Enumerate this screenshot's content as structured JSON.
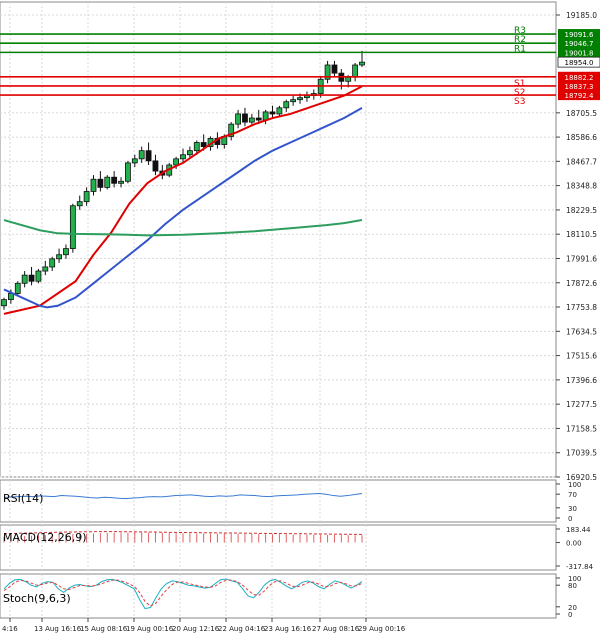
{
  "chart_data": [
    {
      "type": "candlestick",
      "x_tick_labels": [
        "4:16",
        "13 Aug 16:16",
        "15 Aug 08:16",
        "19 Aug 00:16",
        "20 Aug 12:16",
        "22 Aug 04:16",
        "23 Aug 16:16",
        "27 Aug 08:16",
        "29 Aug 00:16"
      ],
      "y_tick_labels": [
        "19185.0",
        "18705.5",
        "18586.6",
        "18467.7",
        "18348.8",
        "18229.5",
        "18110.5",
        "17991.6",
        "17872.6",
        "17753.8",
        "17634.5",
        "17515.6",
        "17396.6",
        "17277.5",
        "17158.5",
        "17039.5",
        "16920.5"
      ],
      "ylim": [
        16920.5,
        19185.0
      ],
      "levels": [
        {
          "name": "R3",
          "value": 19091.6,
          "color": "#008000"
        },
        {
          "name": "R2",
          "value": 19046.7,
          "color": "#008000"
        },
        {
          "name": "R1",
          "value": 19001.8,
          "color": "#008000"
        },
        {
          "name": "S1",
          "value": 18882.2,
          "color": "#e00000"
        },
        {
          "name": "S2",
          "value": 18837.3,
          "color": "#e00000"
        },
        {
          "name": "S3",
          "value": 18792.4,
          "color": "#e00000"
        }
      ],
      "current_price": "18954.0",
      "candles": [
        {
          "o": 17760,
          "h": 17800,
          "c": 17790,
          "l": 17740
        },
        {
          "o": 17790,
          "h": 17840,
          "c": 17820,
          "l": 17770
        },
        {
          "o": 17820,
          "h": 17880,
          "c": 17870,
          "l": 17810
        },
        {
          "o": 17870,
          "h": 17930,
          "c": 17910,
          "l": 17850
        },
        {
          "o": 17910,
          "h": 17950,
          "c": 17880,
          "l": 17860
        },
        {
          "o": 17880,
          "h": 17940,
          "c": 17930,
          "l": 17870
        },
        {
          "o": 17930,
          "h": 17980,
          "c": 17950,
          "l": 17910
        },
        {
          "o": 17950,
          "h": 18000,
          "c": 17990,
          "l": 17930
        },
        {
          "o": 17990,
          "h": 18040,
          "c": 18010,
          "l": 17970
        },
        {
          "o": 18010,
          "h": 18060,
          "c": 18040,
          "l": 17990
        },
        {
          "o": 18040,
          "h": 18260,
          "c": 18250,
          "l": 18020
        },
        {
          "o": 18250,
          "h": 18300,
          "c": 18270,
          "l": 18230
        },
        {
          "o": 18270,
          "h": 18340,
          "c": 18320,
          "l": 18250
        },
        {
          "o": 18320,
          "h": 18400,
          "c": 18380,
          "l": 18300
        },
        {
          "o": 18380,
          "h": 18420,
          "c": 18340,
          "l": 18320
        },
        {
          "o": 18340,
          "h": 18400,
          "c": 18390,
          "l": 18330
        },
        {
          "o": 18390,
          "h": 18420,
          "c": 18360,
          "l": 18340
        },
        {
          "o": 18360,
          "h": 18390,
          "c": 18370,
          "l": 18340
        },
        {
          "o": 18370,
          "h": 18470,
          "c": 18460,
          "l": 18360
        },
        {
          "o": 18460,
          "h": 18500,
          "c": 18480,
          "l": 18440
        },
        {
          "o": 18480,
          "h": 18540,
          "c": 18520,
          "l": 18460
        },
        {
          "o": 18520,
          "h": 18560,
          "c": 18470,
          "l": 18450
        },
        {
          "o": 18470,
          "h": 18500,
          "c": 18420,
          "l": 18400
        },
        {
          "o": 18420,
          "h": 18450,
          "c": 18400,
          "l": 18380
        },
        {
          "o": 18400,
          "h": 18460,
          "c": 18450,
          "l": 18390
        },
        {
          "o": 18450,
          "h": 18490,
          "c": 18480,
          "l": 18430
        },
        {
          "o": 18480,
          "h": 18530,
          "c": 18500,
          "l": 18460
        },
        {
          "o": 18500,
          "h": 18540,
          "c": 18520,
          "l": 18480
        },
        {
          "o": 18520,
          "h": 18570,
          "c": 18560,
          "l": 18500
        },
        {
          "o": 18560,
          "h": 18600,
          "c": 18540,
          "l": 18520
        },
        {
          "o": 18540,
          "h": 18590,
          "c": 18580,
          "l": 18520
        },
        {
          "o": 18580,
          "h": 18610,
          "c": 18550,
          "l": 18530
        },
        {
          "o": 18550,
          "h": 18600,
          "c": 18590,
          "l": 18530
        },
        {
          "o": 18590,
          "h": 18660,
          "c": 18650,
          "l": 18570
        },
        {
          "o": 18650,
          "h": 18720,
          "c": 18700,
          "l": 18630
        },
        {
          "o": 18700,
          "h": 18730,
          "c": 18660,
          "l": 18640
        },
        {
          "o": 18660,
          "h": 18700,
          "c": 18680,
          "l": 18640
        },
        {
          "o": 18680,
          "h": 18720,
          "c": 18670,
          "l": 18650
        },
        {
          "o": 18670,
          "h": 18720,
          "c": 18710,
          "l": 18650
        },
        {
          "o": 18710,
          "h": 18740,
          "c": 18700,
          "l": 18680
        },
        {
          "o": 18700,
          "h": 18740,
          "c": 18730,
          "l": 18690
        },
        {
          "o": 18730,
          "h": 18770,
          "c": 18760,
          "l": 18710
        },
        {
          "o": 18760,
          "h": 18790,
          "c": 18770,
          "l": 18740
        },
        {
          "o": 18770,
          "h": 18800,
          "c": 18780,
          "l": 18750
        },
        {
          "o": 18780,
          "h": 18810,
          "c": 18790,
          "l": 18760
        },
        {
          "o": 18790,
          "h": 18820,
          "c": 18800,
          "l": 18770
        },
        {
          "o": 18800,
          "h": 18880,
          "c": 18870,
          "l": 18780
        },
        {
          "o": 18870,
          "h": 18960,
          "c": 18940,
          "l": 18850
        },
        {
          "o": 18940,
          "h": 18960,
          "c": 18900,
          "l": 18880
        },
        {
          "o": 18900,
          "h": 18920,
          "c": 18860,
          "l": 18820
        },
        {
          "o": 18860,
          "h": 18890,
          "c": 18880,
          "l": 18830
        },
        {
          "o": 18880,
          "h": 18950,
          "c": 18940,
          "l": 18860
        },
        {
          "o": 18940,
          "h": 19010,
          "c": 18954,
          "l": 18930
        }
      ],
      "moving_averages": [
        {
          "color": "#e00000",
          "points": [
            [
              0,
              17720
            ],
            [
              10,
              17760
            ],
            [
              20,
              17880
            ],
            [
              25,
              18010
            ],
            [
              30,
              18120
            ],
            [
              35,
              18260
            ],
            [
              40,
              18360
            ],
            [
              45,
              18420
            ],
            [
              50,
              18460
            ],
            [
              55,
              18520
            ],
            [
              60,
              18580
            ],
            [
              65,
              18610
            ],
            [
              70,
              18650
            ],
            [
              75,
              18680
            ],
            [
              80,
              18700
            ],
            [
              85,
              18730
            ],
            [
              90,
              18760
            ],
            [
              95,
              18790
            ],
            [
              100,
              18835
            ]
          ]
        },
        {
          "color": "#3355cc",
          "points": [
            [
              0,
              17840
            ],
            [
              5,
              17800
            ],
            [
              10,
              17760
            ],
            [
              12,
              17752
            ],
            [
              15,
              17760
            ],
            [
              20,
              17800
            ],
            [
              25,
              17870
            ],
            [
              30,
              17940
            ],
            [
              35,
              18010
            ],
            [
              40,
              18080
            ],
            [
              45,
              18160
            ],
            [
              50,
              18230
            ],
            [
              55,
              18290
            ],
            [
              60,
              18350
            ],
            [
              65,
              18410
            ],
            [
              70,
              18470
            ],
            [
              75,
              18520
            ],
            [
              80,
              18560
            ],
            [
              85,
              18600
            ],
            [
              90,
              18640
            ],
            [
              95,
              18680
            ],
            [
              100,
              18730
            ]
          ]
        },
        {
          "color": "#2e9e5e",
          "points": [
            [
              0,
              18180
            ],
            [
              10,
              18130
            ],
            [
              15,
              18115
            ],
            [
              20,
              18112
            ],
            [
              30,
              18110
            ],
            [
              40,
              18105
            ],
            [
              50,
              18108
            ],
            [
              60,
              18115
            ],
            [
              70,
              18125
            ],
            [
              80,
              18140
            ],
            [
              90,
              18155
            ],
            [
              95,
              18165
            ],
            [
              100,
              18180
            ]
          ]
        }
      ]
    },
    {
      "type": "line",
      "title": "RSI(14)",
      "y_tick_labels": [
        "100",
        "70",
        "30",
        "0"
      ],
      "ylim": [
        0,
        100
      ],
      "line_color": "#3a7bd5",
      "values": [
        60,
        62,
        63,
        64,
        63,
        65,
        64,
        63,
        66,
        65,
        64,
        62,
        60,
        59,
        61,
        60,
        58,
        57,
        59,
        60,
        62,
        63,
        62,
        64,
        66,
        67,
        68,
        66,
        64,
        63,
        65,
        64,
        65,
        68,
        67,
        66,
        64,
        63,
        65,
        66,
        67,
        68,
        70,
        71,
        72,
        70,
        66,
        64,
        66,
        69,
        72
      ]
    },
    {
      "type": "bar",
      "title": "MACD(12,26,9)",
      "y_tick_labels": [
        "183.44",
        "0.00",
        "-317.84"
      ],
      "ylim": [
        -317.84,
        183.44
      ],
      "bar_color": "#e06060",
      "values": [
        80,
        85,
        88,
        90,
        92,
        95,
        100,
        105,
        110,
        112,
        115,
        118,
        120,
        125,
        128,
        130,
        132,
        133,
        135,
        136,
        136,
        135,
        134,
        132,
        130,
        128,
        126,
        124,
        123,
        122,
        121,
        120,
        120,
        119,
        118,
        117,
        116,
        115,
        114,
        113,
        112,
        110,
        108,
        107,
        106,
        105,
        104,
        103,
        102,
        101,
        100,
        99,
        98
      ],
      "signal_values": [
        120,
        122,
        125,
        128,
        130,
        132,
        135,
        138,
        140,
        142,
        143,
        145,
        146,
        147,
        148,
        148,
        148,
        147,
        146,
        145,
        144,
        143,
        142,
        140,
        138,
        137,
        136,
        135,
        134,
        133,
        132,
        131,
        130,
        129,
        128,
        127,
        126,
        125,
        124,
        123,
        122,
        121,
        120,
        119,
        118,
        117,
        116,
        115,
        114,
        113,
        112,
        111,
        110
      ]
    },
    {
      "type": "line",
      "title": "Stoch(9,6,3)",
      "y_tick_labels": [
        "100",
        "80",
        "20",
        "0"
      ],
      "ylim": [
        0,
        100
      ],
      "series": [
        {
          "color": "#1ab0c8",
          "values": [
            70,
            85,
            95,
            96,
            90,
            80,
            75,
            85,
            90,
            88,
            70,
            60,
            72,
            80,
            82,
            78,
            76,
            80,
            90,
            95,
            96,
            92,
            86,
            78,
            70,
            40,
            15,
            18,
            45,
            70,
            85,
            92,
            90,
            85,
            80,
            78,
            75,
            72,
            74,
            85,
            96,
            97,
            92,
            88,
            70,
            50,
            45,
            60,
            80,
            92,
            96,
            88,
            78,
            70,
            78,
            88,
            92,
            86,
            76,
            70,
            82,
            92,
            88,
            80,
            72,
            80,
            90
          ]
        },
        {
          "color": "#e04040",
          "values": [
            65,
            75,
            88,
            93,
            92,
            86,
            80,
            82,
            86,
            88,
            80,
            70,
            68,
            74,
            79,
            79,
            78,
            79,
            84,
            90,
            94,
            94,
            90,
            84,
            77,
            60,
            35,
            22,
            30,
            50,
            68,
            82,
            89,
            89,
            85,
            81,
            78,
            75,
            74,
            78,
            88,
            94,
            94,
            90,
            80,
            66,
            54,
            52,
            64,
            80,
            90,
            92,
            86,
            78,
            75,
            80,
            87,
            89,
            83,
            76,
            76,
            84,
            88,
            84,
            78,
            78,
            85
          ]
        }
      ]
    }
  ]
}
